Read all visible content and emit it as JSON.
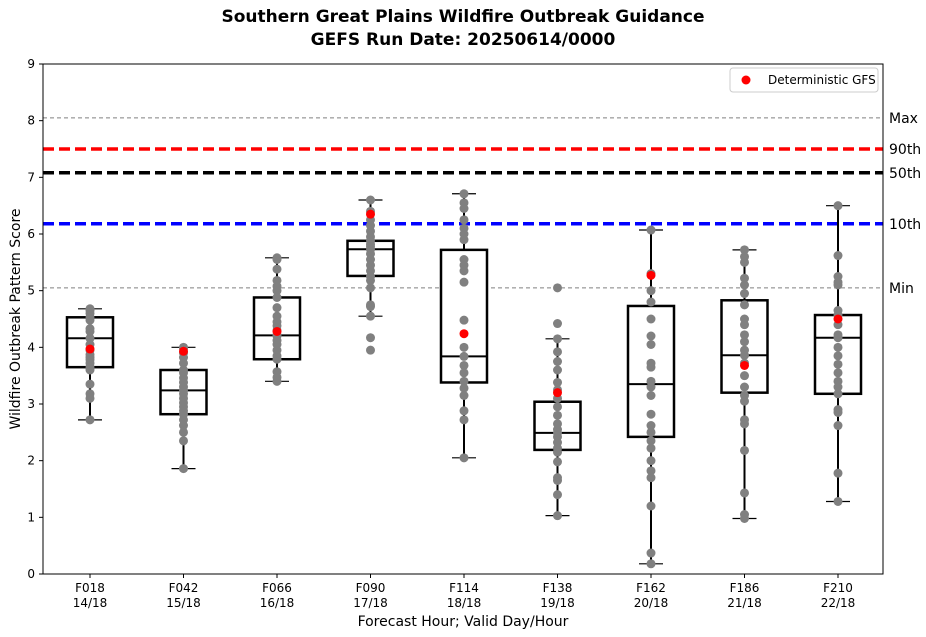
{
  "chart_data": {
    "type": "box",
    "title": "Southern Great Plains Wildfire Outbreak Guidance",
    "subtitle": "GEFS Run Date: 20250614/0000",
    "xlabel": "Forecast Hour; Valid Day/Hour",
    "ylabel": "Wildfire Outbreak Pattern Score",
    "ylim": [
      0,
      9
    ],
    "yticks": [
      "0",
      "1",
      "2",
      "3",
      "4",
      "5",
      "6",
      "7",
      "8",
      "9"
    ],
    "grid": false,
    "legend": {
      "position": "top-right",
      "entries": [
        {
          "label": "Deterministic GFS",
          "color": "#ff0000",
          "marker": "circle"
        }
      ]
    },
    "reference_lines": [
      {
        "label": "Max",
        "value": 8.05,
        "color": "#808080",
        "style": "thin-dashed"
      },
      {
        "label": "90th",
        "value": 7.5,
        "color": "#ff0000",
        "style": "thick-dashed"
      },
      {
        "label": "50th",
        "value": 7.08,
        "color": "#000000",
        "style": "thick-dashed"
      },
      {
        "label": "10th",
        "value": 6.18,
        "color": "#0000ff",
        "style": "thick-dashed"
      },
      {
        "label": "Min",
        "value": 5.05,
        "color": "#808080",
        "style": "thin-dashed"
      }
    ],
    "categories": [
      {
        "hour": "F018",
        "valid": "14/18",
        "whisker_low": 2.72,
        "q1": 3.65,
        "median": 4.16,
        "q3": 4.53,
        "whisker_high": 4.68,
        "deterministic": 3.97,
        "members": [
          2.72,
          3.1,
          3.18,
          3.35,
          3.6,
          3.65,
          3.72,
          3.78,
          3.82,
          3.87,
          3.95,
          4.05,
          4.16,
          4.28,
          4.33,
          4.48,
          4.53,
          4.6,
          4.65,
          4.68
        ]
      },
      {
        "hour": "F042",
        "valid": "15/18",
        "whisker_low": 1.86,
        "q1": 2.82,
        "median": 3.24,
        "q3": 3.6,
        "whisker_high": 4.0,
        "deterministic": 3.93,
        "members": [
          1.86,
          2.35,
          2.5,
          2.62,
          2.72,
          2.82,
          2.88,
          2.95,
          3.02,
          3.1,
          3.18,
          3.24,
          3.3,
          3.38,
          3.46,
          3.55,
          3.6,
          3.72,
          3.82,
          3.9,
          3.98,
          4.0
        ]
      },
      {
        "hour": "F066",
        "valid": "16/18",
        "whisker_low": 3.4,
        "q1": 3.79,
        "median": 4.21,
        "q3": 4.88,
        "whisker_high": 5.58,
        "deterministic": 4.28,
        "members": [
          3.4,
          3.47,
          3.57,
          3.79,
          3.85,
          3.95,
          4.05,
          4.12,
          4.2,
          4.22,
          4.3,
          4.38,
          4.45,
          4.55,
          4.7,
          4.88,
          5.0,
          5.08,
          5.18,
          5.38,
          5.55,
          5.58
        ]
      },
      {
        "hour": "F090",
        "valid": "17/18",
        "whisker_low": 4.55,
        "q1": 5.26,
        "median": 5.73,
        "q3": 5.88,
        "whisker_high": 6.6,
        "deterministic": 6.35,
        "members": [
          3.95,
          4.17,
          4.55,
          4.72,
          4.75,
          5.05,
          5.18,
          5.25,
          5.35,
          5.45,
          5.55,
          5.65,
          5.73,
          5.78,
          5.82,
          5.88,
          5.95,
          6.05,
          6.15,
          6.25,
          6.4,
          6.6
        ]
      },
      {
        "hour": "F114",
        "valid": "18/18",
        "whisker_low": 2.05,
        "q1": 3.38,
        "median": 3.84,
        "q3": 5.72,
        "whisker_high": 6.71,
        "deterministic": 4.24,
        "members": [
          2.05,
          2.72,
          2.88,
          3.15,
          3.28,
          3.4,
          3.55,
          3.68,
          3.84,
          4.0,
          4.48,
          5.15,
          5.35,
          5.45,
          5.55,
          5.9,
          6.0,
          6.1,
          6.25,
          6.45,
          6.55,
          6.71
        ]
      },
      {
        "hour": "F138",
        "valid": "19/18",
        "whisker_low": 1.03,
        "q1": 2.19,
        "median": 2.49,
        "q3": 3.04,
        "whisker_high": 4.15,
        "deterministic": 3.2,
        "members": [
          1.03,
          1.4,
          1.65,
          1.7,
          1.98,
          2.15,
          2.22,
          2.32,
          2.42,
          2.49,
          2.55,
          2.65,
          2.8,
          2.95,
          3.1,
          3.25,
          3.38,
          3.6,
          3.75,
          3.92,
          4.15,
          4.42,
          5.05
        ]
      },
      {
        "hour": "F162",
        "valid": "20/18",
        "whisker_low": 0.18,
        "q1": 2.42,
        "median": 3.35,
        "q3": 4.73,
        "whisker_high": 6.07,
        "deterministic": 5.27,
        "members": [
          0.18,
          0.37,
          1.2,
          1.7,
          1.82,
          2.0,
          2.22,
          2.35,
          2.5,
          2.62,
          2.82,
          3.15,
          3.3,
          3.4,
          3.65,
          3.72,
          4.05,
          4.2,
          4.5,
          4.8,
          5.0,
          5.3,
          6.07
        ]
      },
      {
        "hour": "F186",
        "valid": "21/18",
        "whisker_low": 0.98,
        "q1": 3.2,
        "median": 3.86,
        "q3": 4.83,
        "whisker_high": 5.72,
        "deterministic": 3.68,
        "members": [
          0.98,
          1.05,
          1.43,
          2.18,
          2.65,
          2.72,
          3.05,
          3.15,
          3.3,
          3.5,
          3.72,
          3.86,
          3.95,
          4.1,
          4.22,
          4.4,
          4.5,
          4.75,
          4.95,
          5.1,
          5.22,
          5.5,
          5.6,
          5.72
        ]
      },
      {
        "hour": "F210",
        "valid": "22/18",
        "whisker_low": 1.28,
        "q1": 3.18,
        "median": 4.17,
        "q3": 4.57,
        "whisker_high": 6.5,
        "deterministic": 4.5,
        "members": [
          1.28,
          1.78,
          2.62,
          2.85,
          2.9,
          3.18,
          3.3,
          3.4,
          3.55,
          3.7,
          3.85,
          4.0,
          4.17,
          4.22,
          4.4,
          4.57,
          4.65,
          5.1,
          5.15,
          5.25,
          5.62,
          6.5
        ]
      }
    ]
  }
}
